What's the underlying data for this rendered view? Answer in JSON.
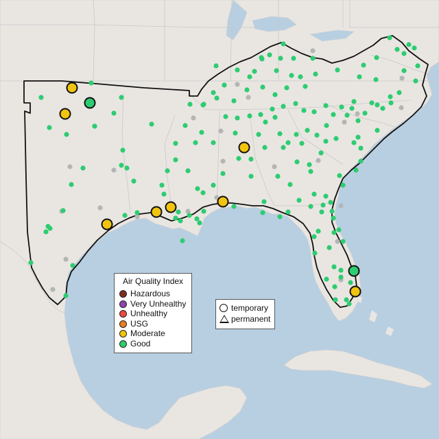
{
  "colors": {
    "water": "#b8cfe2",
    "land": "#e9e6e2",
    "hazardous": "#7b2e22",
    "very_unhealthy": "#8e44ad",
    "unhealthy": "#e74c3c",
    "usg": "#e67e22",
    "moderate": "#f1c40f",
    "good": "#2ecc71",
    "no_data": "#b5b5b5"
  },
  "legend": {
    "title": "Air Quality Index",
    "items": [
      {
        "label": "Hazardous",
        "color": "#7b2e22"
      },
      {
        "label": "Very Unhealthy",
        "color": "#8e44ad"
      },
      {
        "label": "Unhealthy",
        "color": "#e74c3c"
      },
      {
        "label": "USG",
        "color": "#e67e22"
      },
      {
        "label": "Moderate",
        "color": "#f1c40f"
      },
      {
        "label": "Good",
        "color": "#2ecc71"
      }
    ]
  },
  "monitor_legend": {
    "temporary": "temporary",
    "permanent": "permanent"
  }
}
